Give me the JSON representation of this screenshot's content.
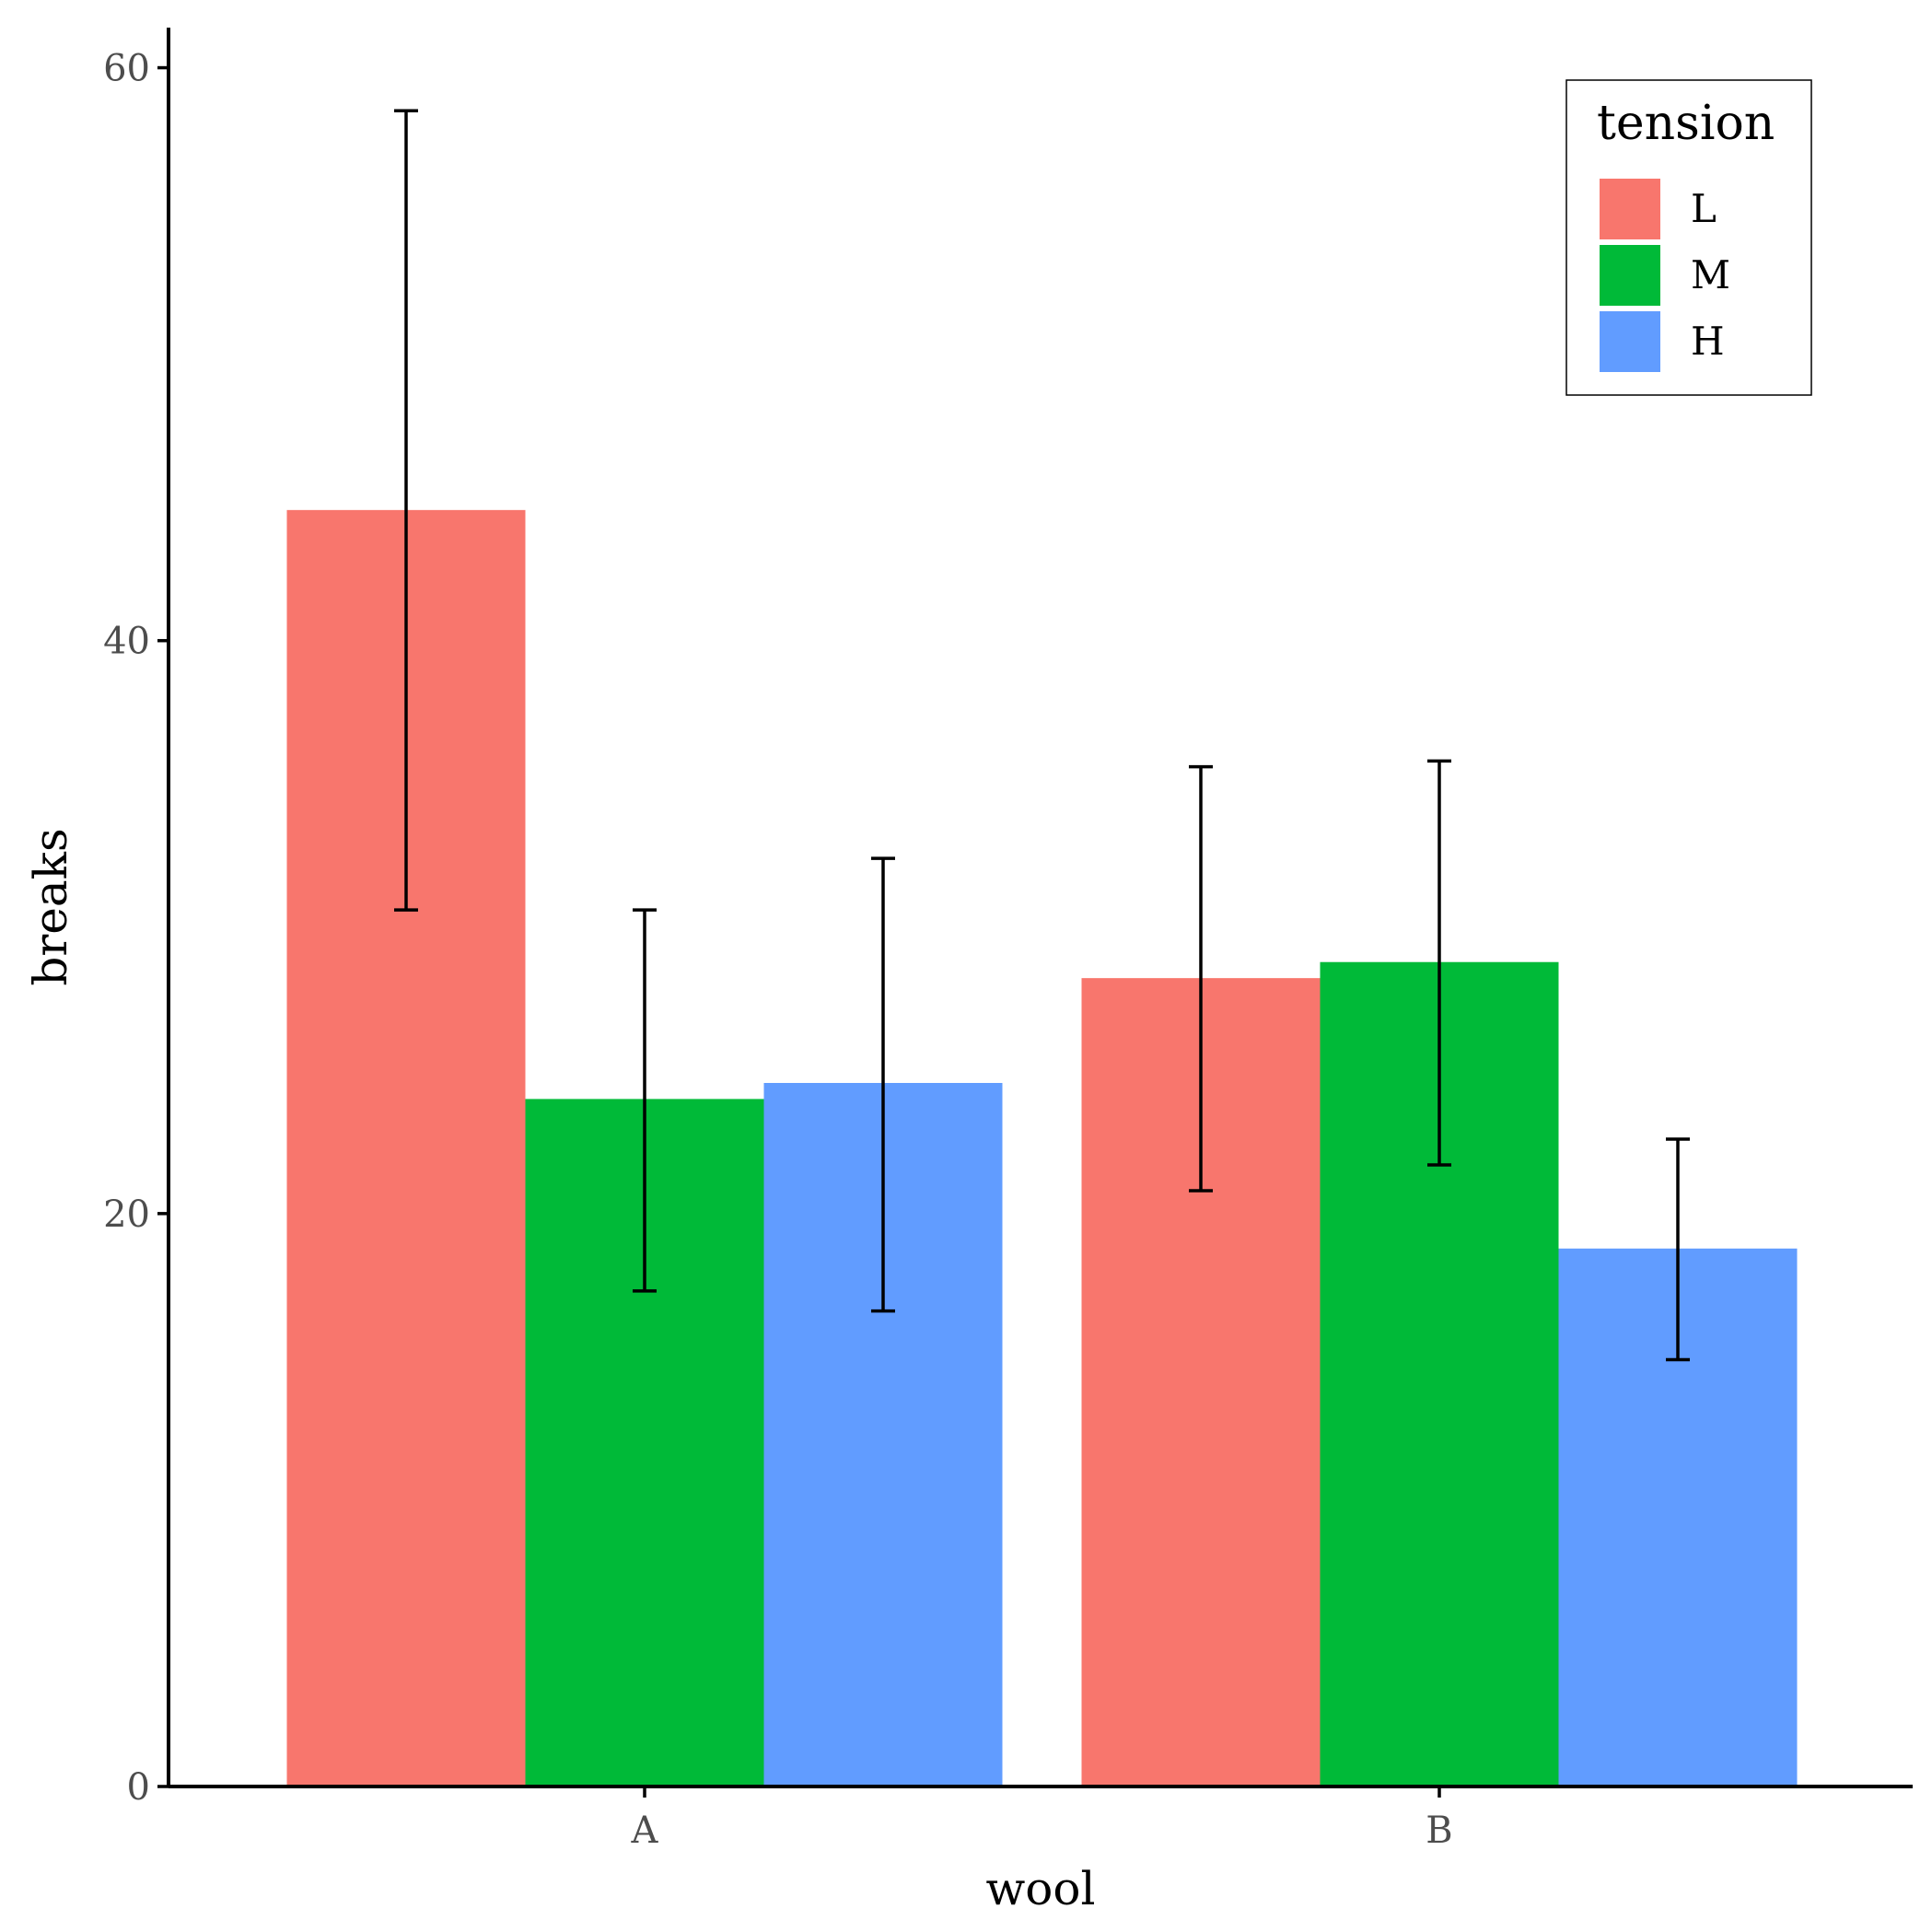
{
  "chart_data": {
    "type": "bar",
    "title": "",
    "xlabel": "wool",
    "ylabel": "breaks",
    "categories": [
      "A",
      "B"
    ],
    "ylim": [
      0,
      61.4
    ],
    "yticks": [
      0,
      20,
      40,
      60
    ],
    "grid": false,
    "legend": {
      "title": "tension",
      "position": "top-right"
    },
    "series": [
      {
        "name": "L",
        "color": "#F8766D",
        "values": [
          44.56,
          28.22
        ],
        "error_low": [
          30.6,
          20.8
        ],
        "error_high": [
          58.5,
          35.6
        ]
      },
      {
        "name": "M",
        "color": "#00BA38",
        "values": [
          24.0,
          28.78
        ],
        "error_low": [
          17.3,
          21.7
        ],
        "error_high": [
          30.6,
          35.8
        ]
      },
      {
        "name": "H",
        "color": "#619CFF",
        "values": [
          24.56,
          18.78
        ],
        "error_low": [
          16.6,
          14.9
        ],
        "error_high": [
          32.4,
          22.6
        ]
      }
    ]
  }
}
